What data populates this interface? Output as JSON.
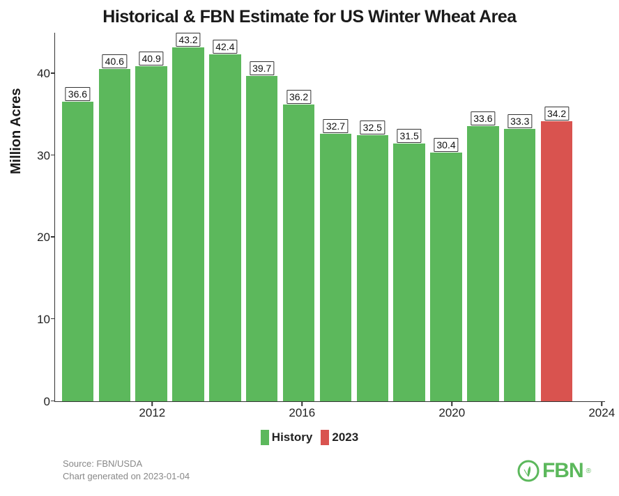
{
  "title": "Historical & FBN Estimate for US Winter Wheat Area",
  "title_fontsize": 25,
  "ylabel": "Million Acres",
  "ylabel_fontsize": 20,
  "background_color": "#ffffff",
  "axis_color": "#333333",
  "text_color": "#1a1a1a",
  "tick_fontsize": 17,
  "type": "bar",
  "ylim": [
    0,
    45
  ],
  "yticks": [
    0,
    10,
    20,
    30,
    40
  ],
  "xtick_years": [
    2012,
    2016,
    2020,
    2024
  ],
  "bar_width": 0.86,
  "bar_label_fontsize": 14,
  "data": [
    {
      "year": 2010,
      "value": 36.6,
      "series": "history"
    },
    {
      "year": 2011,
      "value": 40.6,
      "series": "history"
    },
    {
      "year": 2012,
      "value": 40.9,
      "series": "history"
    },
    {
      "year": 2013,
      "value": 43.2,
      "series": "history"
    },
    {
      "year": 2014,
      "value": 42.4,
      "series": "history"
    },
    {
      "year": 2015,
      "value": 39.7,
      "series": "history"
    },
    {
      "year": 2016,
      "value": 36.2,
      "series": "history"
    },
    {
      "year": 2017,
      "value": 32.7,
      "series": "history"
    },
    {
      "year": 2018,
      "value": 32.5,
      "series": "history"
    },
    {
      "year": 2019,
      "value": 31.5,
      "series": "history"
    },
    {
      "year": 2020,
      "value": 30.4,
      "series": "history"
    },
    {
      "year": 2021,
      "value": 33.6,
      "series": "history"
    },
    {
      "year": 2022,
      "value": 33.3,
      "series": "history"
    },
    {
      "year": 2023,
      "value": 34.2,
      "series": "estimate"
    }
  ],
  "series_colors": {
    "history": "#5cb85c",
    "estimate": "#d9534f"
  },
  "legend": {
    "history_label": "History",
    "estimate_label": "2023",
    "fontsize": 17
  },
  "source": {
    "line1": "Source: FBN/USDA",
    "line2": "Chart generated on 2023-01-04",
    "fontsize": 13,
    "color": "#888888"
  },
  "logo": {
    "text": "FBN",
    "color": "#5cb85c",
    "fontsize": 30,
    "trademark": "®"
  }
}
